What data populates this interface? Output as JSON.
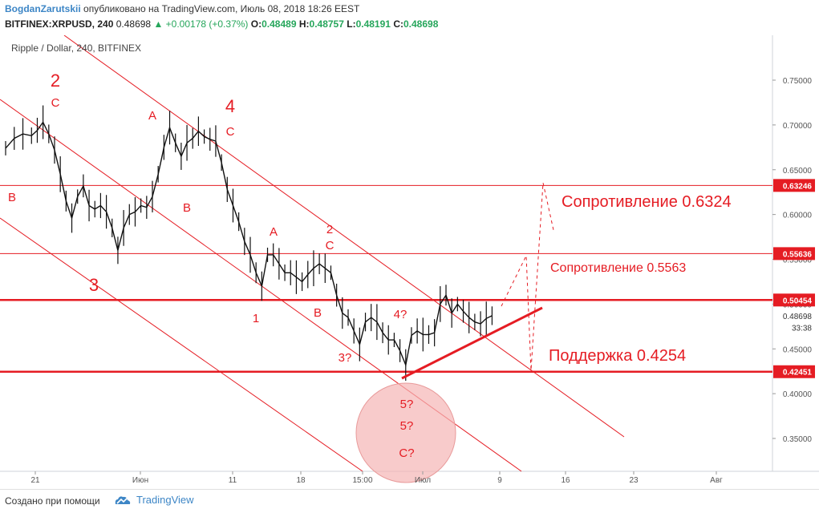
{
  "header": {
    "author": "BogdanZarutskii",
    "published": "опубликовано на TradingView.com, Июль 08, 2018 18:26 EEST",
    "symbol": "BITFINEX:XRPUSD, 240",
    "last": "0.48698",
    "change": "▲ +0.00178 (+0.37%)",
    "o_label": "O:",
    "o": "0.48489",
    "h_label": "H:",
    "h": "0.48757",
    "l_label": "L:",
    "l": "0.48191",
    "c_label": "C:",
    "c": "0.48698"
  },
  "footer": {
    "made_with": "Создано при помощи",
    "brand": "TradingView",
    "icon": "tradingview-cloud-icon"
  },
  "colors": {
    "accent": "#e51c23",
    "candle": "#111111",
    "axis_text": "#555555",
    "circle_fill": "#f5b5b5"
  },
  "chart_data": {
    "type": "line",
    "pair_label": "Ripple / Dollar, 240, BITFINEX",
    "ylim": [
      0.3,
      0.78
    ],
    "y_ticks": [
      "0.35000",
      "0.40000",
      "0.45000",
      "0.50000",
      "0.55000",
      "0.60000",
      "0.65000",
      "0.70000",
      "0.75000"
    ],
    "x_ticks": [
      "21",
      "Июн",
      "11",
      "18",
      "15:00",
      "Июл",
      "9",
      "16",
      "23",
      "Авг"
    ],
    "price_labels": [
      {
        "text": "0.63246",
        "value": 0.63246,
        "style": "red"
      },
      {
        "text": "0.55636",
        "value": 0.55636,
        "style": "red"
      },
      {
        "text": "0.50454",
        "value": 0.50454,
        "style": "red"
      },
      {
        "text": "0.48698",
        "value": 0.48698,
        "style": "plain"
      },
      {
        "text": "33:38",
        "value": 0.4738,
        "style": "plain"
      },
      {
        "text": "0.42451",
        "value": 0.42451,
        "style": "red"
      }
    ],
    "levels": [
      {
        "value": 0.63246,
        "weight": "thin"
      },
      {
        "value": 0.55636,
        "weight": "thin"
      },
      {
        "value": 0.50454,
        "weight": "thick"
      },
      {
        "value": 0.42451,
        "weight": "thick"
      }
    ],
    "level_texts": [
      {
        "text": "Сопротивление 0.6324",
        "value": 0.6324,
        "size": "large"
      },
      {
        "text": "Сопротивление 0.5563",
        "value": 0.5563,
        "size": "medium"
      },
      {
        "text": "Поддержка 0.4254",
        "value": 0.4254,
        "size": "large"
      }
    ],
    "price_series": [
      [
        0,
        0.674
      ],
      [
        3,
        0.685
      ],
      [
        6,
        0.69
      ],
      [
        9,
        0.688
      ],
      [
        11,
        0.694
      ],
      [
        13,
        0.703
      ],
      [
        15,
        0.69
      ],
      [
        17,
        0.672
      ],
      [
        19,
        0.645
      ],
      [
        21,
        0.615
      ],
      [
        23,
        0.596
      ],
      [
        25,
        0.62
      ],
      [
        27,
        0.632
      ],
      [
        29,
        0.61
      ],
      [
        31,
        0.606
      ],
      [
        33,
        0.61
      ],
      [
        35,
        0.603
      ],
      [
        37,
        0.585
      ],
      [
        39,
        0.56
      ],
      [
        41,
        0.585
      ],
      [
        43,
        0.6
      ],
      [
        45,
        0.603
      ],
      [
        47,
        0.61
      ],
      [
        49,
        0.608
      ],
      [
        51,
        0.62
      ],
      [
        53,
        0.645
      ],
      [
        55,
        0.675
      ],
      [
        57,
        0.697
      ],
      [
        59,
        0.68
      ],
      [
        61,
        0.665
      ],
      [
        63,
        0.68
      ],
      [
        65,
        0.685
      ],
      [
        67,
        0.693
      ],
      [
        69,
        0.687
      ],
      [
        71,
        0.684
      ],
      [
        73,
        0.682
      ],
      [
        75,
        0.658
      ],
      [
        77,
        0.628
      ],
      [
        79,
        0.61
      ],
      [
        81,
        0.592
      ],
      [
        83,
        0.57
      ],
      [
        85,
        0.555
      ],
      [
        87,
        0.535
      ],
      [
        89,
        0.52
      ],
      [
        91,
        0.555
      ],
      [
        93,
        0.555
      ],
      [
        95,
        0.545
      ],
      [
        97,
        0.535
      ],
      [
        99,
        0.535
      ],
      [
        101,
        0.53
      ],
      [
        103,
        0.525
      ],
      [
        105,
        0.533
      ],
      [
        107,
        0.54
      ],
      [
        109,
        0.545
      ],
      [
        111,
        0.54
      ],
      [
        113,
        0.535
      ],
      [
        115,
        0.51
      ],
      [
        117,
        0.49
      ],
      [
        119,
        0.485
      ],
      [
        121,
        0.47
      ],
      [
        123,
        0.455
      ],
      [
        125,
        0.48
      ],
      [
        127,
        0.485
      ],
      [
        129,
        0.48
      ],
      [
        131,
        0.468
      ],
      [
        133,
        0.46
      ],
      [
        135,
        0.46
      ],
      [
        137,
        0.448
      ],
      [
        139,
        0.432
      ],
      [
        141,
        0.465
      ],
      [
        143,
        0.47
      ],
      [
        145,
        0.466
      ],
      [
        147,
        0.466
      ],
      [
        149,
        0.468
      ],
      [
        151,
        0.5
      ],
      [
        153,
        0.51
      ],
      [
        155,
        0.49
      ],
      [
        157,
        0.5
      ],
      [
        159,
        0.492
      ],
      [
        161,
        0.485
      ],
      [
        163,
        0.48
      ],
      [
        165,
        0.478
      ],
      [
        167,
        0.484
      ],
      [
        169,
        0.487
      ]
    ],
    "wave_labels": [
      {
        "text": "2",
        "big": true
      },
      {
        "text": "C"
      },
      {
        "text": "B"
      },
      {
        "text": "3",
        "big": true
      },
      {
        "text": "A"
      },
      {
        "text": "4",
        "big": true
      },
      {
        "text": "C"
      },
      {
        "text": "B"
      },
      {
        "text": "A"
      },
      {
        "text": "2"
      },
      {
        "text": "C"
      },
      {
        "text": "1"
      },
      {
        "text": "B"
      },
      {
        "text": "4?"
      },
      {
        "text": "3?"
      },
      {
        "text": "5?"
      },
      {
        "text": "5?"
      },
      {
        "text": "C?"
      }
    ]
  }
}
